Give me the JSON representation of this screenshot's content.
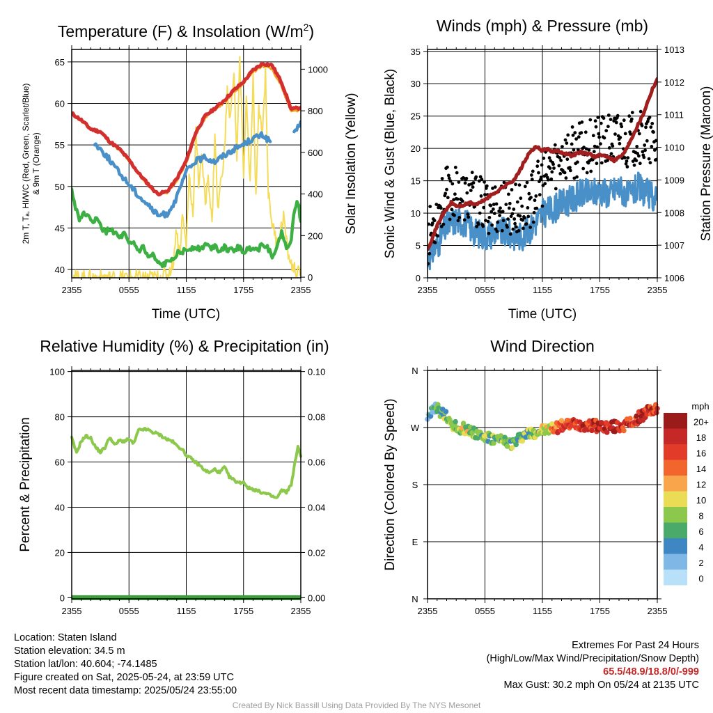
{
  "chart_data": [
    {
      "type": "line",
      "title": "Temperature (F) & Insolation (W/m²)",
      "xlabel": "Time (UTC)",
      "ylabel_lines": [
        "2m T, Tₐ, HI/WC (Red, Green, Scarlet/Blue)",
        "& 9m T (Orange)"
      ],
      "y2label": "Solar Insolation (Yellow)",
      "x_ticks": [
        "2355",
        "0555",
        "1155",
        "1755",
        "2355"
      ],
      "ylim": [
        39,
        66.5
      ],
      "y_ticks": [
        40,
        45,
        50,
        55,
        60,
        65
      ],
      "y2lim": [
        -3,
        1095
      ],
      "y2_ticks": [
        0,
        200,
        400,
        600,
        800,
        1000
      ],
      "x_hours": [
        0,
        24
      ],
      "series": [
        {
          "name": "2m T",
          "color": "#d32f2f",
          "x": [
            0,
            1,
            2,
            3,
            4,
            5,
            6,
            7,
            8,
            9,
            10,
            11,
            12,
            13,
            14,
            15,
            16,
            17,
            18,
            19,
            20,
            21,
            22,
            23,
            24
          ],
          "values": [
            58.8,
            58,
            56.9,
            56.6,
            55.4,
            54.5,
            53.2,
            51.6,
            50.3,
            49.1,
            49.4,
            50.9,
            53.1,
            56.5,
            58.5,
            59.4,
            60.4,
            61.6,
            62.6,
            64.0,
            64.8,
            64.6,
            62.5,
            59.3,
            59.5
          ]
        },
        {
          "name": "9m T",
          "color": "#f0a020",
          "x": [
            0,
            1,
            2,
            3,
            4,
            5,
            6,
            7,
            8,
            9,
            10,
            11,
            12,
            13,
            14,
            15,
            16,
            17,
            18,
            19,
            20,
            21,
            22,
            23,
            24
          ],
          "values": [
            58.7,
            57.9,
            56.8,
            56.5,
            55.3,
            54.4,
            53.1,
            51.5,
            50.2,
            49.0,
            49.3,
            50.7,
            52.9,
            56.3,
            58.3,
            59.2,
            60.2,
            61.4,
            62.4,
            63.8,
            64.5,
            64.2,
            62.0,
            59.0,
            59.3
          ]
        },
        {
          "name": "HI/WC",
          "color": "#4a90c8",
          "x": [
            2.4,
            3,
            4,
            5,
            6,
            7,
            8,
            9,
            10,
            11,
            12,
            13,
            14,
            15,
            16,
            17,
            18,
            19,
            20,
            20.8
          ],
          "values": [
            55.2,
            54.5,
            53.2,
            51.6,
            50.3,
            48.9,
            47.8,
            46.5,
            46.7,
            48.6,
            51.8,
            53.1,
            53.5,
            53.0,
            53.8,
            54.5,
            55.1,
            55.8,
            56.2,
            55.4
          ]
        },
        {
          "name": "HI/WC segment 2",
          "color": "#4a90c8",
          "x": [
            23.3,
            23.7,
            24
          ],
          "values": [
            56.6,
            57.3,
            57.8
          ]
        },
        {
          "name": "Tₐ",
          "color": "#3cb043",
          "x": [
            0,
            0.4,
            0.8,
            1.5,
            2,
            2.5,
            3,
            3.5,
            4,
            4.5,
            5,
            5.5,
            6,
            6.5,
            7,
            7.5,
            8,
            8.5,
            9,
            9.5,
            10,
            10.5,
            11,
            11.5,
            12,
            12.5,
            13,
            13.5,
            14,
            14.5,
            15,
            15.5,
            16,
            16.5,
            17,
            17.5,
            18,
            18.5,
            19,
            19.5,
            20,
            20.5,
            21,
            21.5,
            22,
            22.5,
            23,
            23.4,
            23.7,
            24
          ],
          "values": [
            49.5,
            47.5,
            46.2,
            46.8,
            45.7,
            46.1,
            45.4,
            44.4,
            44.9,
            44.5,
            43.7,
            44.3,
            42.9,
            43.2,
            42.2,
            42.7,
            41.4,
            41.7,
            40.7,
            40.5,
            40.8,
            41.4,
            41.9,
            42.1,
            42.3,
            42.6,
            42.8,
            42.4,
            43.1,
            42.6,
            42.9,
            42.3,
            42.8,
            42.2,
            42.4,
            42.7,
            42.1,
            42.4,
            42.8,
            42.3,
            43.2,
            42.7,
            41.7,
            42.5,
            44.6,
            42.4,
            43.8,
            47.5,
            48.2,
            45.8
          ]
        },
        {
          "name": "Solar Insolation",
          "color": "#f4dc5a",
          "axis": "y2",
          "x": [
            0,
            9,
            10,
            10.6,
            11,
            11.3,
            11.6,
            12,
            12.3,
            12.7,
            13,
            13.3,
            13.6,
            14,
            14.3,
            14.7,
            15,
            15.3,
            15.6,
            16,
            16.3,
            16.6,
            17,
            17.3,
            17.6,
            18,
            18.3,
            18.7,
            19,
            19.3,
            19.6,
            20,
            20.3,
            20.6,
            21,
            21.4,
            21.8,
            22.2,
            22.6,
            23,
            23.5,
            24
          ],
          "values": [
            0,
            0,
            15,
            60,
            240,
            100,
            300,
            150,
            500,
            300,
            700,
            450,
            600,
            350,
            500,
            250,
            700,
            320,
            450,
            600,
            900,
            750,
            1000,
            550,
            1050,
            500,
            850,
            450,
            950,
            380,
            800,
            700,
            1000,
            400,
            260,
            180,
            200,
            300,
            130,
            60,
            30,
            10
          ]
        }
      ]
    },
    {
      "type": "line",
      "title": "Winds (mph) & Pressure (mb)",
      "xlabel": "Time (UTC)",
      "ylabel": "Sonic Wind & Gust (Blue, Black)",
      "y2label": "Station Pressure (Maroon)",
      "x_ticks": [
        "2355",
        "0555",
        "1155",
        "1755",
        "2355"
      ],
      "ylim": [
        0,
        35.3
      ],
      "y_ticks": [
        0,
        5,
        10,
        15,
        20,
        25,
        30,
        35
      ],
      "y2lim": [
        1006,
        1013
      ],
      "y2_ticks": [
        1006,
        1007,
        1008,
        1009,
        1010,
        1011,
        1012,
        1013
      ],
      "x_hours": [
        0,
        24
      ],
      "series": [
        {
          "name": "Sonic Wind",
          "color": "#4a90c8",
          "x": [
            0,
            1,
            2,
            3,
            4,
            5,
            6,
            7,
            8,
            9,
            10,
            11,
            12,
            13,
            14,
            15,
            16,
            17,
            18,
            19,
            20,
            21,
            22,
            23,
            24
          ],
          "values": [
            3,
            5,
            8,
            9,
            8.5,
            7,
            6.5,
            7,
            7,
            6.5,
            6.5,
            8,
            10,
            10.5,
            11.5,
            12,
            13,
            13,
            13.5,
            13,
            14,
            12.5,
            14,
            13,
            12
          ]
        },
        {
          "name": "Gust",
          "color": "#000000",
          "x": [
            0,
            1,
            2,
            3,
            4,
            5,
            6,
            7,
            8,
            9,
            10,
            11,
            12,
            13,
            14,
            15,
            16,
            17,
            18,
            19,
            20,
            21,
            22,
            23,
            24
          ],
          "values": [
            6,
            10,
            13,
            13,
            12.5,
            12,
            11,
            11,
            11,
            10.5,
            10.5,
            12.5,
            15,
            17,
            19,
            19,
            20,
            20.5,
            21,
            21,
            22,
            21,
            22,
            21,
            20
          ]
        },
        {
          "name": "Station Pressure",
          "color": "#a01e1e",
          "axis": "y2",
          "x": [
            0,
            0.5,
            1,
            1.5,
            2,
            2.5,
            3,
            3.5,
            4,
            4.5,
            5,
            5.5,
            6,
            6.5,
            7,
            7.5,
            8,
            8.5,
            9,
            9.5,
            10,
            10.5,
            11,
            11.5,
            12,
            12.5,
            13,
            13.5,
            14,
            14.5,
            15,
            15.5,
            16,
            16.5,
            17,
            17.5,
            18,
            18.5,
            19,
            19.5,
            20,
            20.5,
            21,
            21.5,
            22,
            22.5,
            23,
            23.5,
            24
          ],
          "values": [
            1006.9,
            1007.2,
            1007.6,
            1007.9,
            1008.1,
            1008.3,
            1008.2,
            1008.2,
            1008.25,
            1008.3,
            1008.25,
            1008.3,
            1008.4,
            1008.5,
            1008.6,
            1008.7,
            1008.8,
            1008.9,
            1009.0,
            1009.2,
            1009.5,
            1009.75,
            1009.95,
            1010.0,
            1009.9,
            1009.95,
            1009.85,
            1009.9,
            1009.85,
            1009.8,
            1009.75,
            1009.8,
            1009.85,
            1009.8,
            1009.8,
            1009.7,
            1009.75,
            1009.75,
            1009.7,
            1009.6,
            1009.7,
            1009.8,
            1010.1,
            1010.4,
            1010.7,
            1011.0,
            1011.4,
            1011.8,
            1012.1
          ]
        }
      ]
    },
    {
      "type": "line",
      "title": "Relative Humidity (%) & Precipitation (in)",
      "ylabel": "Percent & Precipitation",
      "x_ticks": [
        "2355",
        "0555",
        "1155",
        "1755",
        "2355"
      ],
      "ylim": [
        -0.5,
        100.5
      ],
      "y_ticks": [
        0,
        20,
        40,
        60,
        80,
        100
      ],
      "y2lim": [
        -0.0005,
        0.1005
      ],
      "y2_ticks": [
        "0.00",
        "0.02",
        "0.04",
        "0.06",
        "0.08",
        "0.10"
      ],
      "x_hours": [
        0,
        24
      ],
      "series": [
        {
          "name": "Relative Humidity",
          "color": "#8cc84b",
          "x": [
            0,
            0.5,
            1,
            1.5,
            2,
            2.5,
            3,
            3.5,
            4,
            4.5,
            5,
            5.5,
            6,
            6.5,
            7,
            7.5,
            8,
            8.5,
            9,
            9.5,
            10,
            10.5,
            11,
            11.5,
            12,
            12.5,
            13,
            13.5,
            14,
            14.5,
            15,
            15.5,
            16,
            16.5,
            17,
            17.5,
            18,
            18.5,
            19,
            19.5,
            20,
            20.5,
            21,
            21.5,
            22,
            22.5,
            23,
            23.4,
            23.7,
            24
          ],
          "values": [
            70.6,
            63.9,
            69.3,
            71.5,
            70.5,
            66.5,
            64.4,
            66.5,
            71.1,
            67.4,
            69.5,
            69.2,
            70.0,
            68.1,
            74.0,
            74.5,
            74.2,
            73.1,
            72.5,
            71.3,
            70.0,
            69.3,
            67.2,
            66.0,
            63.0,
            61.5,
            59.8,
            58.2,
            56.1,
            55.3,
            56.8,
            55.2,
            57.8,
            53.5,
            52.0,
            50.8,
            51.2,
            48.5,
            48.0,
            47.2,
            46.4,
            45.8,
            44.8,
            44.0,
            47.5,
            46.7,
            50.0,
            60.0,
            66.5,
            62.5
          ]
        },
        {
          "name": "Precipitation",
          "color": "#3a9e3a",
          "axis": "y2",
          "x": [
            0,
            24
          ],
          "values": [
            0,
            0
          ]
        }
      ]
    },
    {
      "type": "scatter",
      "title": "Wind Direction",
      "ylabel": "Direction (Colored By Speed)",
      "x_ticks": [
        "2355",
        "0555",
        "1155",
        "1755",
        "2355"
      ],
      "y_ticks": [
        "N",
        "E",
        "S",
        "W",
        "N"
      ],
      "ylim": [
        0,
        360
      ],
      "x_hours": [
        0,
        24
      ],
      "legend": {
        "title": "mph",
        "placement": "right",
        "labels": [
          "20+",
          "18",
          "16",
          "14",
          "12",
          "10",
          "8",
          "6",
          "4",
          "2",
          "0"
        ],
        "colors": [
          "#9b1b1b",
          "#c62828",
          "#e33b2a",
          "#f2652d",
          "#f9a54b",
          "#eadc55",
          "#8cc84b",
          "#4aaa6a",
          "#3f87c2",
          "#7fb8e6",
          "#b8e0f8"
        ]
      },
      "series": [
        {
          "name": "Direction",
          "x": [
            0,
            1,
            2,
            3,
            4,
            5,
            6,
            7,
            8,
            9,
            10,
            11,
            12,
            13,
            14,
            15,
            16,
            17,
            18,
            19,
            20,
            21,
            22,
            23,
            24
          ],
          "values": [
            290,
            300,
            285,
            270,
            268,
            262,
            255,
            250,
            248,
            245,
            258,
            262,
            265,
            268,
            272,
            275,
            275,
            273,
            272,
            270,
            272,
            275,
            285,
            295,
            300
          ]
        }
      ]
    }
  ],
  "info": {
    "location": "Location: Staten Island",
    "elevation": "Station elevation: 34.5 m",
    "latlon": "Station lat/lon: 40.604; -74.1485",
    "created": "Figure created on Sat, 2025-05-24, at 23:59 UTC",
    "recent": "Most recent data timestamp: 2025/05/24 23:55:00"
  },
  "extremes": {
    "heading": "Extremes For Past 24 Hours",
    "subheading": "(High/Low/Max Wind/Precipitation/Snow Depth)",
    "values": "65.5/48.9/18.8/0/-999",
    "max_gust": "Max Gust: 30.2 mph On 05/24 at 2135 UTC"
  },
  "credit": "Created By Nick Bassill Using Data Provided By The NYS Mesonet"
}
